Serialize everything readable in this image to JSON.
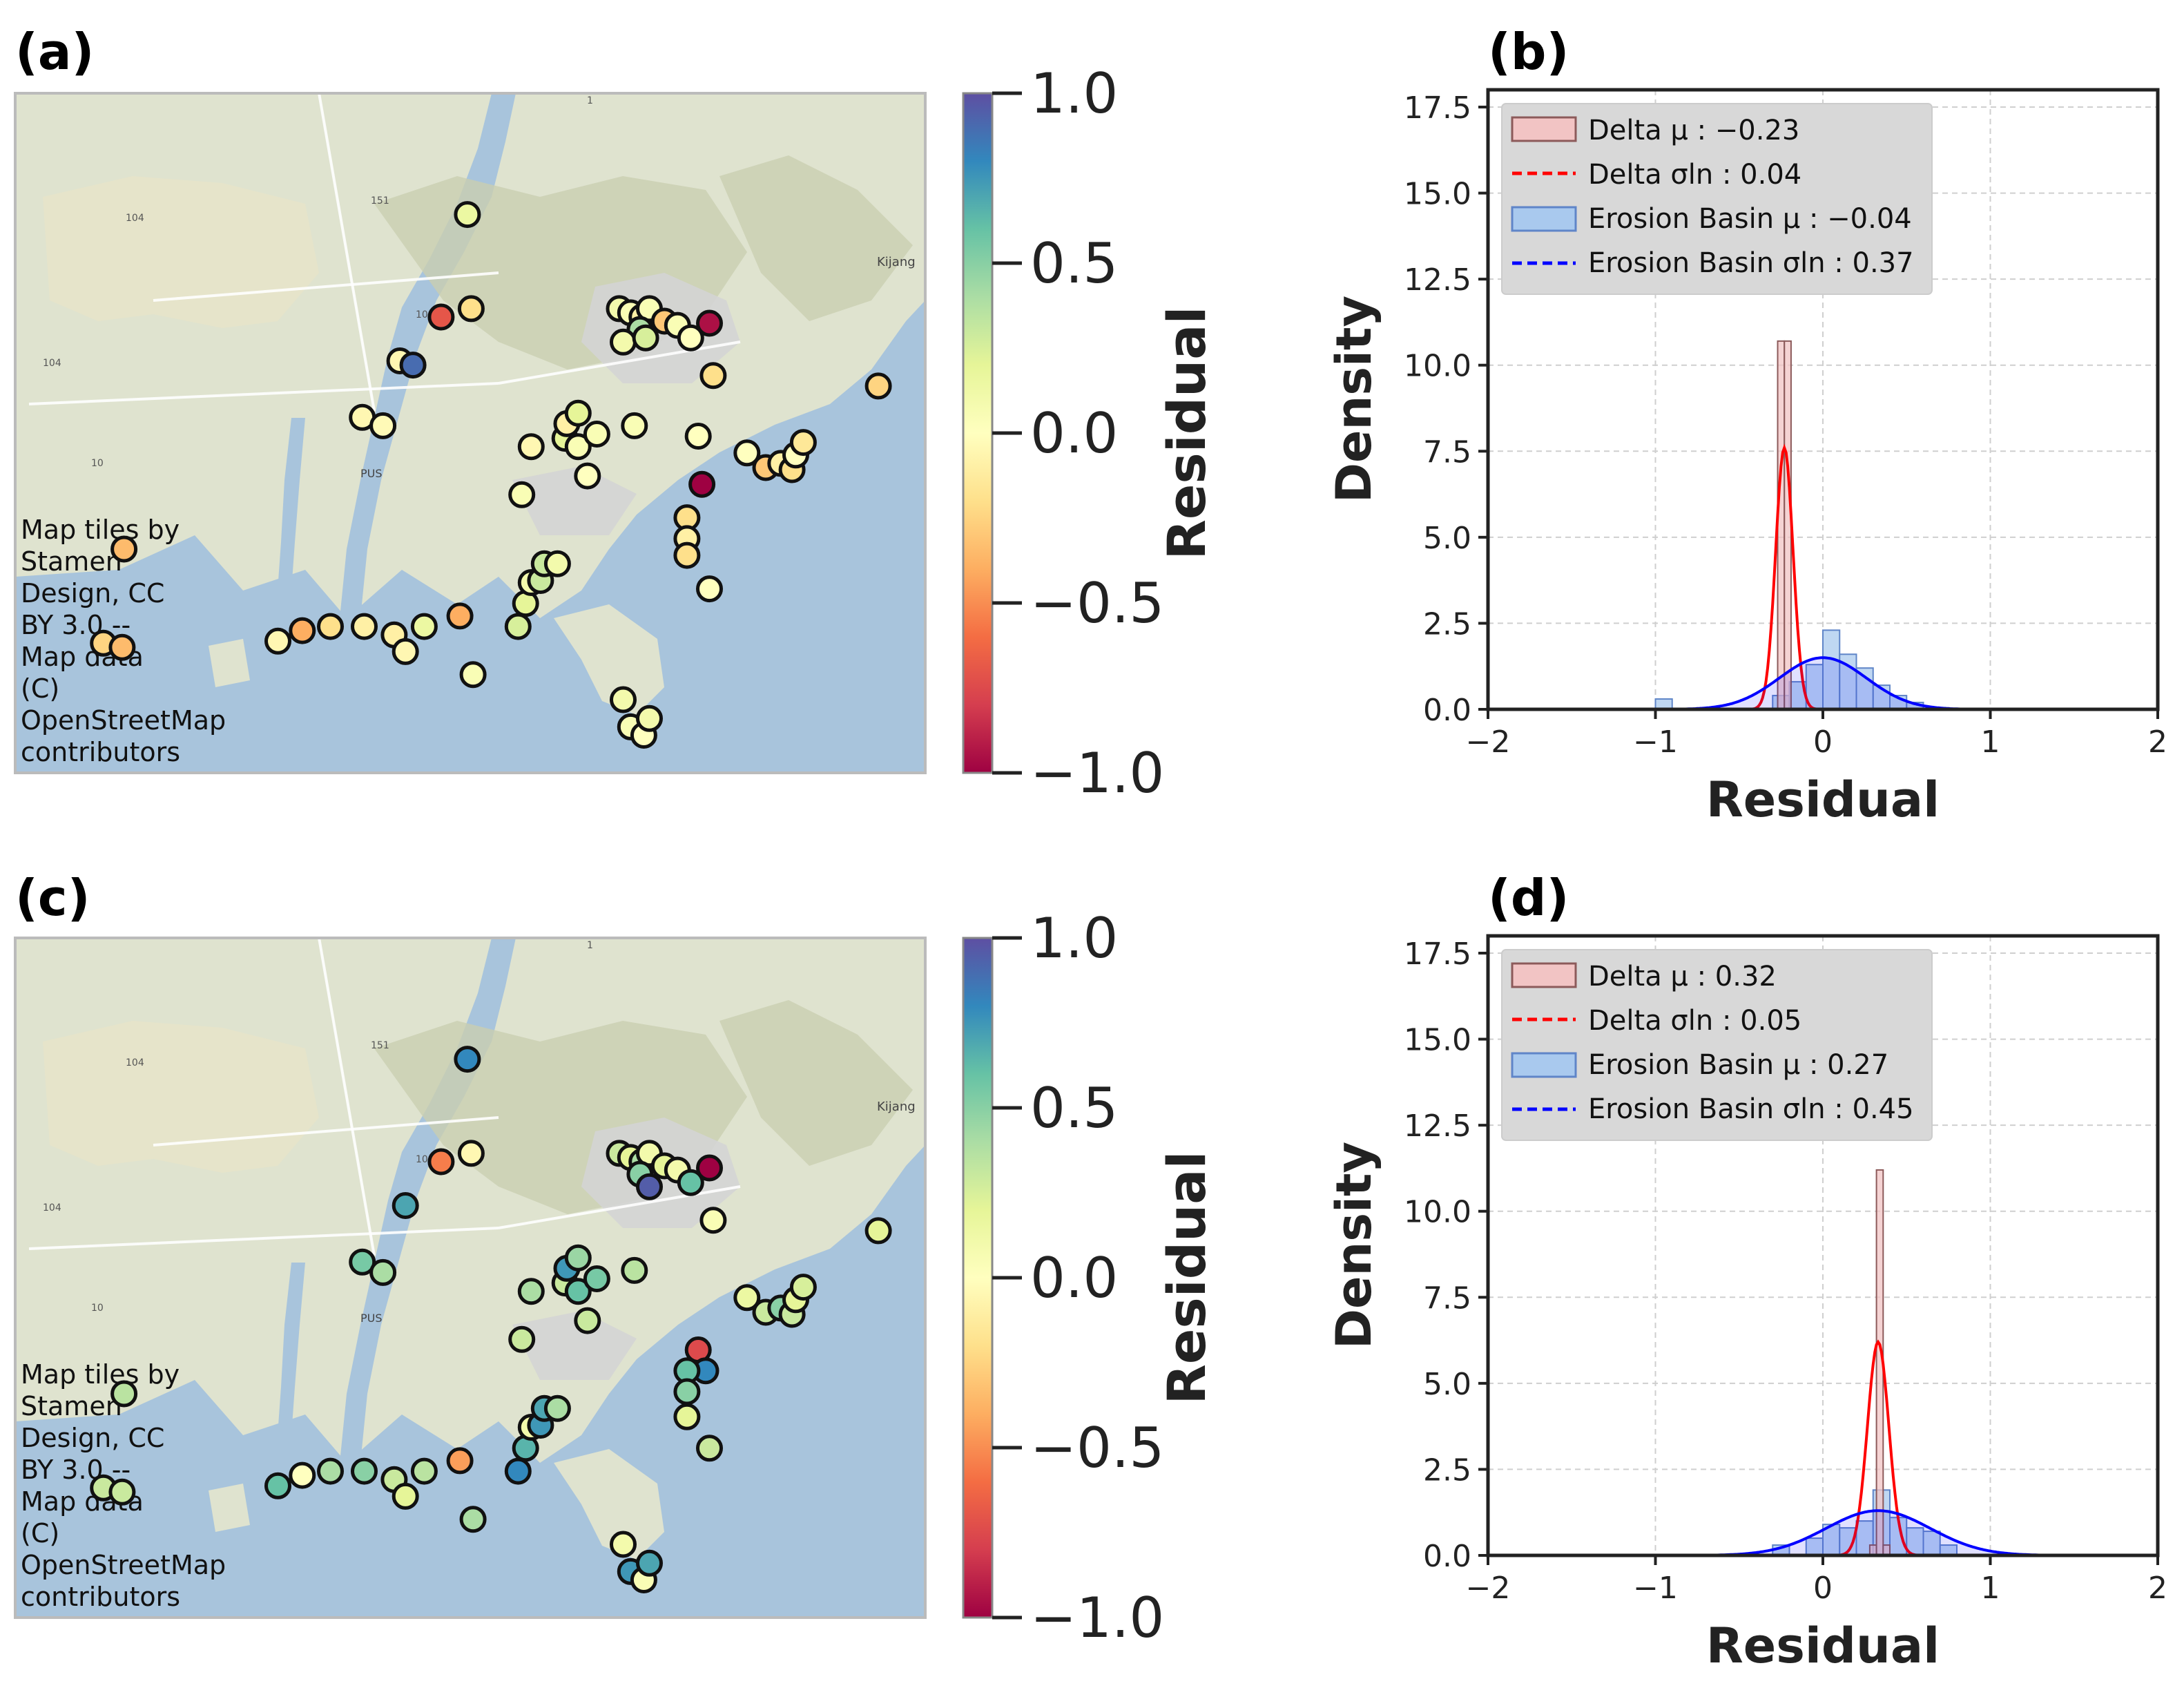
{
  "panels": [
    {
      "id": "a",
      "label": "(a)"
    },
    {
      "id": "b",
      "label": "(b)"
    },
    {
      "id": "c",
      "label": "(c)"
    },
    {
      "id": "d",
      "label": "(d)"
    }
  ],
  "map_attribution": [
    "Map tiles by",
    "Stamen",
    "Design, CC",
    "BY 3.0 --",
    "Map data",
    "(C)",
    "OpenStreetMap",
    "contributors"
  ],
  "map_text": {
    "airport": "PUS",
    "city": "Kijang",
    "road_labels": [
      "104",
      "10",
      "10",
      "104",
      "151",
      "1"
    ]
  },
  "colorbar": {
    "label": "Residual",
    "ticks": [
      "1.0",
      "0.5",
      "0.0",
      "−0.5",
      "−1.0"
    ],
    "tick_values": [
      1.0,
      0.5,
      0.0,
      -0.5,
      -1.0
    ],
    "range": [
      -1.0,
      1.0
    ],
    "colormap": "Spectral",
    "stops": [
      "#9e0142",
      "#d53e4f",
      "#f46d43",
      "#fdae61",
      "#fee08b",
      "#ffffbf",
      "#e6f598",
      "#abdda4",
      "#66c2a5",
      "#3288bd",
      "#5e4fa2"
    ]
  },
  "colors": {
    "delta_fill": "#f2c4c4",
    "delta_edge": "#8c5a5a",
    "delta_line": "#ff0000",
    "erosion_fill": "#a9c9ee",
    "erosion_edge": "#5f85c8",
    "erosion_line": "#0000ff",
    "land": "#dfe3cf",
    "water": "#a8c4dc"
  },
  "chart_data": [
    {
      "id": "a",
      "type": "scatter",
      "title": "(a)",
      "colorbar_label": "Residual",
      "points": [
        {
          "lon": 129.001,
          "lat": 35.267,
          "residual": 0.15
        },
        {
          "lon": 128.987,
          "lat": 35.218,
          "residual": -0.7
        },
        {
          "lon": 129.003,
          "lat": 35.222,
          "residual": -0.2
        },
        {
          "lon": 128.965,
          "lat": 35.197,
          "residual": -0.05
        },
        {
          "lon": 128.972,
          "lat": 35.195,
          "residual": 0.9
        },
        {
          "lon": 128.945,
          "lat": 35.17,
          "residual": -0.05
        },
        {
          "lon": 128.956,
          "lat": 35.166,
          "residual": -0.03
        },
        {
          "lon": 128.818,
          "lat": 35.107,
          "residual": -0.35
        },
        {
          "lon": 128.807,
          "lat": 35.062,
          "residual": -0.25
        },
        {
          "lon": 128.817,
          "lat": 35.06,
          "residual": -0.35
        },
        {
          "lon": 128.9,
          "lat": 35.063,
          "residual": -0.05
        },
        {
          "lon": 128.913,
          "lat": 35.068,
          "residual": -0.4
        },
        {
          "lon": 128.928,
          "lat": 35.07,
          "residual": -0.2
        },
        {
          "lon": 128.946,
          "lat": 35.07,
          "residual": -0.1
        },
        {
          "lon": 128.962,
          "lat": 35.066,
          "residual": -0.1
        },
        {
          "lon": 128.968,
          "lat": 35.058,
          "residual": -0.05
        },
        {
          "lon": 128.978,
          "lat": 35.07,
          "residual": 0.15
        },
        {
          "lon": 128.997,
          "lat": 35.075,
          "residual": -0.4
        },
        {
          "lon": 129.004,
          "lat": 35.047,
          "residual": 0.05
        },
        {
          "lon": 129.028,
          "lat": 35.07,
          "residual": 0.25
        },
        {
          "lon": 129.032,
          "lat": 35.081,
          "residual": 0.2
        },
        {
          "lon": 129.035,
          "lat": 35.091,
          "residual": 0.1
        },
        {
          "lon": 129.04,
          "lat": 35.092,
          "residual": 0.3
        },
        {
          "lon": 129.042,
          "lat": 35.1,
          "residual": 0.3
        },
        {
          "lon": 129.049,
          "lat": 35.1,
          "residual": 0.1
        },
        {
          "lon": 129.03,
          "lat": 35.133,
          "residual": 0.05
        },
        {
          "lon": 129.035,
          "lat": 35.156,
          "residual": -0.05
        },
        {
          "lon": 129.053,
          "lat": 35.16,
          "residual": 0.2
        },
        {
          "lon": 129.06,
          "lat": 35.156,
          "residual": 0.05
        },
        {
          "lon": 129.054,
          "lat": 35.167,
          "residual": -0.1
        },
        {
          "lon": 129.06,
          "lat": 35.172,
          "residual": 0.2
        },
        {
          "lon": 129.07,
          "lat": 35.162,
          "residual": 0.05
        },
        {
          "lon": 129.065,
          "lat": 35.142,
          "residual": 0.0
        },
        {
          "lon": 129.09,
          "lat": 35.166,
          "residual": 0.05
        },
        {
          "lon": 129.082,
          "lat": 35.222,
          "residual": 0.1
        },
        {
          "lon": 129.088,
          "lat": 35.22,
          "residual": 0.05
        },
        {
          "lon": 129.094,
          "lat": 35.218,
          "residual": -0.1
        },
        {
          "lon": 129.098,
          "lat": 35.222,
          "residual": 0.05
        },
        {
          "lon": 129.106,
          "lat": 35.216,
          "residual": -0.3
        },
        {
          "lon": 129.113,
          "lat": 35.214,
          "residual": 0.05
        },
        {
          "lon": 129.093,
          "lat": 35.212,
          "residual": 0.4
        },
        {
          "lon": 129.084,
          "lat": 35.206,
          "residual": 0.1
        },
        {
          "lon": 129.096,
          "lat": 35.208,
          "residual": 0.25
        },
        {
          "lon": 129.12,
          "lat": 35.208,
          "residual": 0.0
        },
        {
          "lon": 129.13,
          "lat": 35.215,
          "residual": -0.95
        },
        {
          "lon": 129.132,
          "lat": 35.19,
          "residual": -0.2
        },
        {
          "lon": 129.124,
          "lat": 35.161,
          "residual": 0.0
        },
        {
          "lon": 129.126,
          "lat": 35.138,
          "residual": -1.0
        },
        {
          "lon": 129.118,
          "lat": 35.122,
          "residual": -0.2
        },
        {
          "lon": 129.118,
          "lat": 35.112,
          "residual": -0.1
        },
        {
          "lon": 129.118,
          "lat": 35.104,
          "residual": -0.2
        },
        {
          "lon": 129.13,
          "lat": 35.088,
          "residual": 0.0
        },
        {
          "lon": 129.084,
          "lat": 35.035,
          "residual": 0.1
        },
        {
          "lon": 129.088,
          "lat": 35.022,
          "residual": 0.05
        },
        {
          "lon": 129.095,
          "lat": 35.018,
          "residual": 0.0
        },
        {
          "lon": 129.098,
          "lat": 35.026,
          "residual": 0.1
        },
        {
          "lon": 129.15,
          "lat": 35.153,
          "residual": 0.0
        },
        {
          "lon": 129.16,
          "lat": 35.146,
          "residual": -0.3
        },
        {
          "lon": 129.168,
          "lat": 35.148,
          "residual": -0.1
        },
        {
          "lon": 129.174,
          "lat": 35.145,
          "residual": -0.2
        },
        {
          "lon": 129.176,
          "lat": 35.152,
          "residual": 0.0
        },
        {
          "lon": 129.18,
          "lat": 35.158,
          "residual": -0.15
        },
        {
          "lon": 129.22,
          "lat": 35.185,
          "residual": -0.25
        }
      ]
    },
    {
      "id": "b",
      "type": "histogram",
      "xlabel": "Residual",
      "ylabel": "Density",
      "xlim": [
        -2,
        2
      ],
      "ylim": [
        0,
        17.5
      ],
      "xticks": [
        "−2",
        "−1",
        "0",
        "1",
        "2"
      ],
      "yticks": [
        "0.0",
        "2.5",
        "5.0",
        "7.5",
        "10.0",
        "12.5",
        "15.0",
        "17.5"
      ],
      "legend_placement": "upper-left",
      "legend": [
        {
          "text": "Delta μ : −0.23",
          "kind": "patch-delta"
        },
        {
          "text": "Delta σln : 0.04",
          "kind": "line-delta"
        },
        {
          "text": "Erosion Basin μ : −0.04",
          "kind": "patch-erosion"
        },
        {
          "text": "Erosion Basin σln : 0.37",
          "kind": "line-erosion"
        }
      ],
      "series": [
        {
          "name": "Delta",
          "mu": -0.23,
          "sigma_ln": 0.04,
          "bins": [
            {
              "x0": -0.27,
              "x1": -0.23,
              "density": 10.7
            },
            {
              "x0": -0.23,
              "x1": -0.19,
              "density": 10.7
            }
          ],
          "curve": {
            "mu": -0.23,
            "sd": 0.052,
            "peak": 7.6
          }
        },
        {
          "name": "Erosion Basin",
          "mu": -0.04,
          "sigma_ln": 0.37,
          "bins": [
            {
              "x0": -1.0,
              "x1": -0.9,
              "density": 0.3
            },
            {
              "x0": -0.3,
              "x1": -0.2,
              "density": 0.4
            },
            {
              "x0": -0.2,
              "x1": -0.1,
              "density": 0.8
            },
            {
              "x0": -0.1,
              "x1": 0.0,
              "density": 1.3
            },
            {
              "x0": 0.0,
              "x1": 0.1,
              "density": 2.3
            },
            {
              "x0": 0.1,
              "x1": 0.2,
              "density": 1.6
            },
            {
              "x0": 0.2,
              "x1": 0.3,
              "density": 1.2
            },
            {
              "x0": 0.3,
              "x1": 0.4,
              "density": 0.7
            },
            {
              "x0": 0.4,
              "x1": 0.5,
              "density": 0.4
            },
            {
              "x0": 0.5,
              "x1": 0.6,
              "density": 0.2
            }
          ],
          "curve": {
            "mu": 0.0,
            "sd": 0.26,
            "peak": 1.5
          }
        }
      ]
    },
    {
      "id": "c",
      "type": "scatter",
      "title": "(c)",
      "colorbar_label": "Residual",
      "points": [
        {
          "lon": 129.001,
          "lat": 35.267,
          "residual": 0.8
        },
        {
          "lon": 128.987,
          "lat": 35.218,
          "residual": -0.55
        },
        {
          "lon": 129.003,
          "lat": 35.222,
          "residual": -0.05
        },
        {
          "lon": 128.968,
          "lat": 35.197,
          "residual": 0.7
        },
        {
          "lon": 128.945,
          "lat": 35.17,
          "residual": 0.55
        },
        {
          "lon": 128.956,
          "lat": 35.165,
          "residual": 0.4
        },
        {
          "lon": 128.818,
          "lat": 35.107,
          "residual": 0.35
        },
        {
          "lon": 128.807,
          "lat": 35.062,
          "residual": 0.3
        },
        {
          "lon": 128.817,
          "lat": 35.06,
          "residual": 0.3
        },
        {
          "lon": 128.9,
          "lat": 35.063,
          "residual": 0.6
        },
        {
          "lon": 128.913,
          "lat": 35.068,
          "residual": 0.0
        },
        {
          "lon": 128.928,
          "lat": 35.07,
          "residual": 0.4
        },
        {
          "lon": 128.946,
          "lat": 35.07,
          "residual": 0.5
        },
        {
          "lon": 128.962,
          "lat": 35.066,
          "residual": 0.3
        },
        {
          "lon": 128.968,
          "lat": 35.058,
          "residual": 0.2
        },
        {
          "lon": 128.978,
          "lat": 35.07,
          "residual": 0.35
        },
        {
          "lon": 128.997,
          "lat": 35.075,
          "residual": -0.45
        },
        {
          "lon": 129.004,
          "lat": 35.047,
          "residual": 0.4
        },
        {
          "lon": 129.028,
          "lat": 35.07,
          "residual": 0.8
        },
        {
          "lon": 129.032,
          "lat": 35.081,
          "residual": 0.65
        },
        {
          "lon": 129.035,
          "lat": 35.091,
          "residual": 0.1
        },
        {
          "lon": 129.04,
          "lat": 35.092,
          "residual": 0.75
        },
        {
          "lon": 129.042,
          "lat": 35.1,
          "residual": 0.7
        },
        {
          "lon": 129.049,
          "lat": 35.1,
          "residual": 0.4
        },
        {
          "lon": 129.03,
          "lat": 35.133,
          "residual": 0.3
        },
        {
          "lon": 129.035,
          "lat": 35.156,
          "residual": 0.4
        },
        {
          "lon": 129.053,
          "lat": 35.16,
          "residual": 0.3
        },
        {
          "lon": 129.06,
          "lat": 35.156,
          "residual": 0.6
        },
        {
          "lon": 129.054,
          "lat": 35.167,
          "residual": 0.75
        },
        {
          "lon": 129.06,
          "lat": 35.172,
          "residual": 0.45
        },
        {
          "lon": 129.07,
          "lat": 35.162,
          "residual": 0.55
        },
        {
          "lon": 129.065,
          "lat": 35.142,
          "residual": 0.3
        },
        {
          "lon": 129.09,
          "lat": 35.166,
          "residual": 0.35
        },
        {
          "lon": 129.082,
          "lat": 35.222,
          "residual": 0.3
        },
        {
          "lon": 129.088,
          "lat": 35.22,
          "residual": 0.2
        },
        {
          "lon": 129.094,
          "lat": 35.218,
          "residual": 0.4
        },
        {
          "lon": 129.098,
          "lat": 35.222,
          "residual": 0.1
        },
        {
          "lon": 129.106,
          "lat": 35.216,
          "residual": 0.2
        },
        {
          "lon": 129.113,
          "lat": 35.214,
          "residual": 0.1
        },
        {
          "lon": 129.093,
          "lat": 35.212,
          "residual": 0.5
        },
        {
          "lon": 129.098,
          "lat": 35.206,
          "residual": 0.95
        },
        {
          "lon": 129.12,
          "lat": 35.208,
          "residual": 0.6
        },
        {
          "lon": 129.13,
          "lat": 35.215,
          "residual": -1.0
        },
        {
          "lon": 129.132,
          "lat": 35.19,
          "residual": 0.05
        },
        {
          "lon": 129.124,
          "lat": 35.128,
          "residual": -0.75
        },
        {
          "lon": 129.128,
          "lat": 35.118,
          "residual": 0.8
        },
        {
          "lon": 129.118,
          "lat": 35.118,
          "residual": 0.6
        },
        {
          "lon": 129.118,
          "lat": 35.108,
          "residual": 0.5
        },
        {
          "lon": 129.118,
          "lat": 35.096,
          "residual": 0.2
        },
        {
          "lon": 129.13,
          "lat": 35.081,
          "residual": 0.3
        },
        {
          "lon": 129.084,
          "lat": 35.035,
          "residual": 0.1
        },
        {
          "lon": 129.088,
          "lat": 35.022,
          "residual": 0.75
        },
        {
          "lon": 129.095,
          "lat": 35.018,
          "residual": 0.05
        },
        {
          "lon": 129.098,
          "lat": 35.026,
          "residual": 0.7
        },
        {
          "lon": 129.15,
          "lat": 35.153,
          "residual": 0.15
        },
        {
          "lon": 129.16,
          "lat": 35.146,
          "residual": 0.3
        },
        {
          "lon": 129.168,
          "lat": 35.148,
          "residual": 0.5
        },
        {
          "lon": 129.174,
          "lat": 35.145,
          "residual": 0.3
        },
        {
          "lon": 129.176,
          "lat": 35.152,
          "residual": 0.2
        },
        {
          "lon": 129.18,
          "lat": 35.158,
          "residual": 0.25
        },
        {
          "lon": 129.22,
          "lat": 35.185,
          "residual": 0.2
        }
      ]
    },
    {
      "id": "d",
      "type": "histogram",
      "xlabel": "Residual",
      "ylabel": "Density",
      "xlim": [
        -2,
        2
      ],
      "ylim": [
        0,
        17.5
      ],
      "xticks": [
        "−2",
        "−1",
        "0",
        "1",
        "2"
      ],
      "yticks": [
        "0.0",
        "2.5",
        "5.0",
        "7.5",
        "10.0",
        "12.5",
        "15.0",
        "17.5"
      ],
      "legend_placement": "upper-left",
      "legend": [
        {
          "text": "Delta μ : 0.32",
          "kind": "patch-delta"
        },
        {
          "text": "Delta σln : 0.05",
          "kind": "line-delta"
        },
        {
          "text": "Erosion Basin μ : 0.27",
          "kind": "patch-erosion"
        },
        {
          "text": "Erosion Basin σln : 0.45",
          "kind": "line-erosion"
        }
      ],
      "series": [
        {
          "name": "Delta",
          "mu": 0.32,
          "sigma_ln": 0.05,
          "bins": [
            {
              "x0": 0.28,
              "x1": 0.32,
              "density": 0.3
            },
            {
              "x0": 0.32,
              "x1": 0.36,
              "density": 11.2
            },
            {
              "x0": 0.36,
              "x1": 0.4,
              "density": 0.3
            }
          ],
          "curve": {
            "mu": 0.33,
            "sd": 0.064,
            "peak": 6.2
          }
        },
        {
          "name": "Erosion Basin",
          "mu": 0.27,
          "sigma_ln": 0.45,
          "bins": [
            {
              "x0": -0.3,
              "x1": -0.2,
              "density": 0.3
            },
            {
              "x0": -0.1,
              "x1": 0.0,
              "density": 0.5
            },
            {
              "x0": 0.0,
              "x1": 0.1,
              "density": 0.9
            },
            {
              "x0": 0.1,
              "x1": 0.2,
              "density": 0.8
            },
            {
              "x0": 0.2,
              "x1": 0.3,
              "density": 1.0
            },
            {
              "x0": 0.3,
              "x1": 0.4,
              "density": 1.9
            },
            {
              "x0": 0.4,
              "x1": 0.5,
              "density": 1.1
            },
            {
              "x0": 0.5,
              "x1": 0.6,
              "density": 0.8
            },
            {
              "x0": 0.6,
              "x1": 0.7,
              "density": 0.7
            },
            {
              "x0": 0.7,
              "x1": 0.8,
              "density": 0.3
            }
          ],
          "curve": {
            "mu": 0.33,
            "sd": 0.31,
            "peak": 1.3
          }
        }
      ]
    }
  ]
}
